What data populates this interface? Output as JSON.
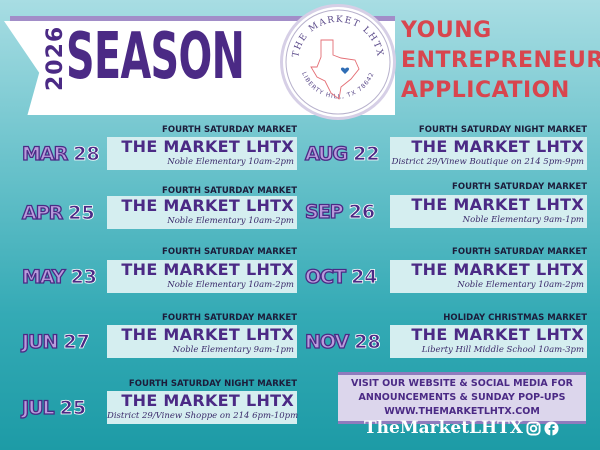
{
  "header": {
    "year": "2026",
    "season": "SEASON",
    "title_lines": [
      "YOUNG",
      "ENTREPRENEUR",
      "APPLICATION"
    ]
  },
  "logo": {
    "top_text": "THE MARKET LHTX",
    "bottom_text": "LIBERTY HILL, TX 78642"
  },
  "colors": {
    "purple": "#4b2a85",
    "red": "#d8454e",
    "lavender": "#b99bdc",
    "box": "#d5eef0"
  },
  "events": [
    {
      "month": "MAR",
      "day": "28",
      "type": "FOURTH SATURDAY MARKET",
      "name": "THE MARKET LHTX",
      "venue": "Noble Elementary   10am-2pm"
    },
    {
      "month": "APR",
      "day": "25",
      "type": "FOURTH SATURDAY MARKET",
      "name": "THE MARKET LHTX",
      "venue": "Noble Elementary 10am-2pm"
    },
    {
      "month": "MAY",
      "day": "23",
      "type": "FOURTH SATURDAY MARKET",
      "name": "THE MARKET LHTX",
      "venue": "Noble Elementary 10am-2pm"
    },
    {
      "month": "JUN",
      "day": "27",
      "type": "FOURTH SATURDAY MARKET",
      "name": "THE MARKET LHTX",
      "venue": "Noble Elementary 9am-1pm"
    },
    {
      "month": "JUL",
      "day": "25",
      "type": "FOURTH SATURDAY NIGHT MARKET",
      "name": "THE MARKET LHTX",
      "venue": "District 29/Vinew Shoppe on 214 6pm-10pm"
    },
    {
      "month": "AUG",
      "day": "22",
      "type": "FOURTH SATURDAY NIGHT MARKET",
      "name": "THE MARKET LHTX",
      "venue": "District 29/Vinew Boutique on 214 5pm-9pm"
    },
    {
      "month": "SEP",
      "day": "26",
      "type": "FOURTH SATURDAY MARKET",
      "name": "THE MARKET LHTX",
      "venue": "Noble Elementary 9am-1pm"
    },
    {
      "month": "OCT",
      "day": "24",
      "type": "FOURTH SATURDAY MARKET",
      "name": "THE MARKET LHTX",
      "venue": "Noble Elementary 10am-2pm"
    },
    {
      "month": "NOV",
      "day": "28",
      "type": "HOLIDAY CHRISTMAS MARKET",
      "name": "THE MARKET LHTX",
      "venue": "Liberty Hill Middle School  10am-3pm"
    }
  ],
  "info": {
    "lines": [
      "VISIT OUR WEBSITE & SOCIAL MEDIA FOR",
      "ANNOUNCEMENTS & SUNDAY POP-UPS",
      "WWW.THEMARKETLHTX.COM"
    ]
  },
  "social": {
    "handle": "TheMarketLHTX",
    "icons": [
      "instagram-icon",
      "facebook-icon"
    ]
  }
}
